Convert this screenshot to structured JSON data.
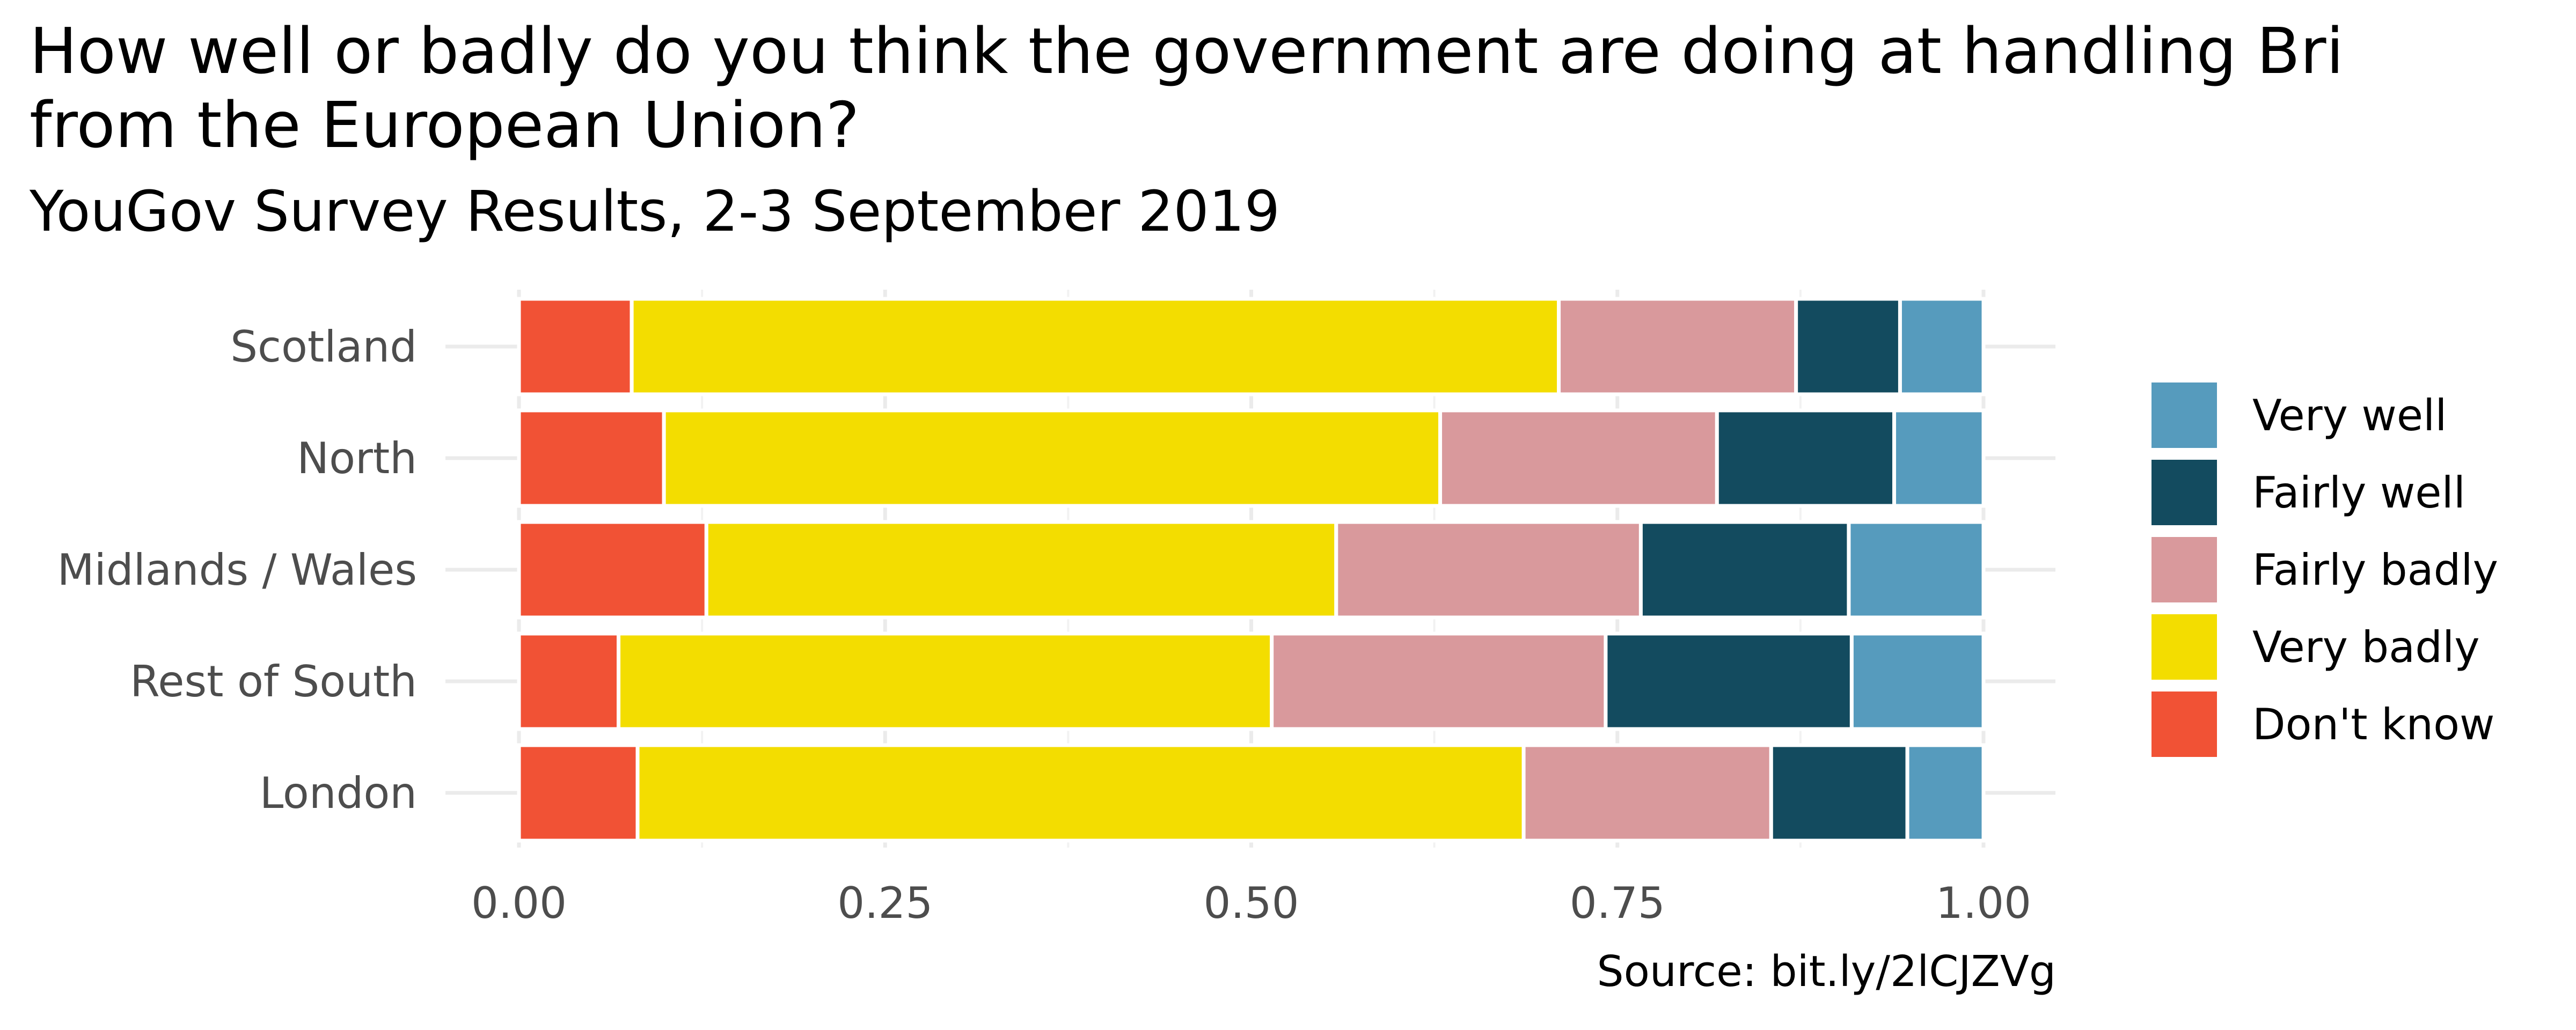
{
  "chart_data": {
    "type": "bar",
    "orientation": "horizontal",
    "stacked": true,
    "title": "How well or badly do you think the government are doing at handling Britain's exit from the European Union?",
    "title_lines": [
      "How well or badly do you think the government are doing at handling Bri",
      "from the European Union?"
    ],
    "subtitle": "YouGov Survey Results, 2-3 September 2019",
    "caption": "Source: bit.ly/2lCJZVg",
    "xlabel": "",
    "ylabel": "",
    "xlim": [
      0,
      1
    ],
    "x_ticks": [
      "0.00",
      "0.25",
      "0.50",
      "0.75",
      "1.00"
    ],
    "x_tick_values": [
      0,
      0.25,
      0.5,
      0.75,
      1.0
    ],
    "grid": true,
    "legend_position": "right",
    "categories": [
      "Scotland",
      "North",
      "Midlands / Wales",
      "Rest of South",
      "London"
    ],
    "series": [
      {
        "name": "Don't know",
        "color": "#f15235",
        "values": [
          0.077,
          0.099,
          0.128,
          0.068,
          0.081
        ]
      },
      {
        "name": "Very badly",
        "color": "#f3dd00",
        "values": [
          0.633,
          0.53,
          0.43,
          0.446,
          0.605
        ]
      },
      {
        "name": "Fairly badly",
        "color": "#d9999c",
        "values": [
          0.162,
          0.189,
          0.208,
          0.228,
          0.169
        ]
      },
      {
        "name": "Fairly well",
        "color": "#134b5f",
        "values": [
          0.071,
          0.121,
          0.142,
          0.168,
          0.093
        ]
      },
      {
        "name": "Very well",
        "color": "#569bbd",
        "values": [
          0.057,
          0.061,
          0.092,
          0.09,
          0.052
        ]
      }
    ],
    "legend_order": [
      "Very well",
      "Fairly well",
      "Fairly badly",
      "Very badly",
      "Don't know"
    ]
  }
}
